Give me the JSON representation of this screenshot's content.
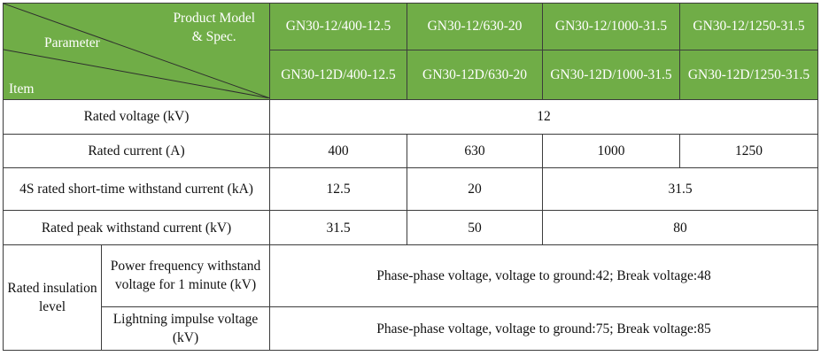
{
  "header": {
    "product_model_label": "Product Model & Spec.",
    "product_model_line1": "Product Model",
    "product_model_line2": "& Spec.",
    "parameter_label": "Parameter",
    "item_label": "Item",
    "models_top": [
      "GN30-12/400-12.5",
      "GN30-12/630-20",
      "GN30-12/1000-31.5",
      "GN30-12/1250-31.5"
    ],
    "models_bottom": [
      "GN30-12D/400-12.5",
      "GN30-12D/630-20",
      "GN30-12D/1000-31.5",
      "GN30-12D/1250-31.5"
    ]
  },
  "rows": {
    "rated_voltage": {
      "label": "Rated voltage (kV)",
      "value": "12"
    },
    "rated_current": {
      "label": "Rated current (A)",
      "values": [
        "400",
        "630",
        "1000",
        "1250"
      ]
    },
    "short_time": {
      "label": "4S rated short-time withstand current (kA)",
      "values": [
        "12.5",
        "20",
        "31.5"
      ]
    },
    "peak": {
      "label": "Rated peak withstand current (kV)",
      "values": [
        "31.5",
        "50",
        "80"
      ]
    },
    "insulation": {
      "group_label": "Rated insulation level",
      "power_freq_label": "Power frequency withstand voltage for 1 minute (kV)",
      "power_freq_value": "Phase-phase voltage, voltage to ground:42; Break voltage:48",
      "lightning_label": "Lightning impulse voltage (kV)",
      "lightning_value": "Phase-phase voltage, voltage to ground:75; Break voltage:85"
    }
  },
  "colors": {
    "header_bg": "#70ad47",
    "header_text": "#ffffff",
    "border": "#3c3c3c"
  }
}
